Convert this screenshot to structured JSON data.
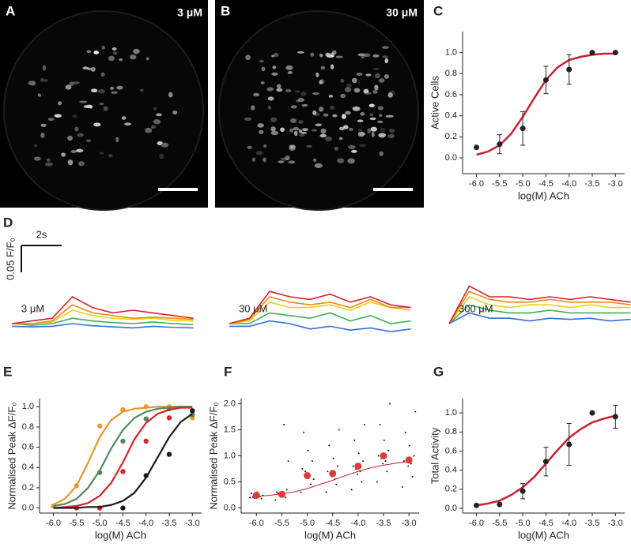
{
  "chart_data": [
    {
      "type": "image",
      "label": "A",
      "annotation": "3 μM"
    },
    {
      "type": "image",
      "label": "B",
      "annotation": "30 μM"
    },
    {
      "type": "scatter",
      "label": "C",
      "xlabel": "log(M) ACh",
      "ylabel": "Active Cells",
      "xlim": [
        -6.3,
        -2.8
      ],
      "ylim": [
        -0.15,
        1.2
      ],
      "xticks": [
        {
          "value": -6,
          "label": "-6.0"
        },
        -5.5,
        {
          "value": -5,
          "label": "-5.0"
        },
        -4.5,
        {
          "value": -4,
          "label": "-4.0"
        },
        -3.5,
        {
          "value": -3,
          "label": "-3.0"
        }
      ],
      "yticks": [
        {
          "value": 0,
          "label": "0.0"
        },
        0.2,
        0.4,
        0.6,
        0.8,
        {
          "value": 1,
          "label": "1.0"
        }
      ],
      "x": [
        -6,
        -5.5,
        -5,
        -4.5,
        -4,
        -3.5,
        -3
      ],
      "values": [
        0.1,
        0.13,
        0.28,
        0.74,
        0.84,
        1.0,
        1.0
      ],
      "errors": [
        null,
        0.09,
        0.16,
        0.13,
        0.14,
        null,
        null
      ],
      "color": "#222222",
      "fit": {
        "color": "#c8202e",
        "x": [
          -6,
          -5.75,
          -5.5,
          -5.25,
          -5,
          -4.75,
          -4.5,
          -4.25,
          -4,
          -3.75,
          -3.5,
          -3.25,
          -3
        ],
        "values": [
          0.03,
          0.06,
          0.12,
          0.23,
          0.39,
          0.57,
          0.74,
          0.86,
          0.93,
          0.96,
          0.98,
          0.99,
          0.99
        ]
      }
    },
    {
      "type": "traces",
      "label": "D",
      "scalebar": {
        "x_value": 2,
        "x_label": "2s",
        "y_value": 0.05,
        "y_label": "0.05 F/F₀"
      },
      "x": [
        0,
        1,
        2,
        3,
        4,
        5,
        6,
        7,
        8,
        9
      ],
      "panels": [
        {
          "label": "3 μM",
          "series": [
            {
              "color": "#3a6fd8",
              "values": [
                -0.005,
                -0.006,
                -0.005,
                0,
                -0.004,
                -0.006,
                -0.008,
                -0.005,
                -0.007,
                -0.008
              ]
            },
            {
              "color": "#3fae5a",
              "values": [
                0,
                -0.003,
                0,
                0.01,
                0.005,
                0.002,
                0,
                0.003,
                0,
                -0.002
              ]
            },
            {
              "color": "#e8d21e",
              "values": [
                0,
                0,
                0.003,
                0.025,
                0.015,
                0.01,
                0.008,
                0.01,
                0.006,
                0.005
              ]
            },
            {
              "color": "#f08a1c",
              "values": [
                0,
                0,
                0.005,
                0.035,
                0.02,
                0.015,
                0.01,
                0.012,
                0.01,
                0.008
              ]
            },
            {
              "color": "#d8232a",
              "values": [
                0,
                0.005,
                0.01,
                0.05,
                0.03,
                0.02,
                0.025,
                0.02,
                0.015,
                0.01
              ]
            }
          ]
        },
        {
          "label": "30 μM",
          "series": [
            {
              "color": "#3a6fd8",
              "values": [
                -0.005,
                -0.005,
                0.005,
                0,
                -0.01,
                -0.005,
                -0.012,
                -0.008,
                -0.015,
                -0.01
              ]
            },
            {
              "color": "#3fae5a",
              "values": [
                0,
                0,
                0.02,
                0.015,
                0.01,
                0.02,
                0.005,
                0.015,
                0,
                0.005
              ]
            },
            {
              "color": "#e8d21e",
              "values": [
                0,
                0.005,
                0.04,
                0.03,
                0.03,
                0.035,
                0.025,
                0.04,
                0.03,
                0.025
              ]
            },
            {
              "color": "#f08a1c",
              "values": [
                0,
                0.008,
                0.05,
                0.04,
                0.035,
                0.04,
                0.03,
                0.045,
                0.03,
                0.03
              ]
            },
            {
              "color": "#d8232a",
              "values": [
                0,
                0.01,
                0.06,
                0.05,
                0.045,
                0.055,
                0.04,
                0.05,
                0.035,
                0.03
              ]
            }
          ]
        },
        {
          "label": "300 μM",
          "series": [
            {
              "color": "#3a6fd8",
              "values": [
                0,
                0.02,
                0.01,
                0.01,
                0.005,
                0.01,
                0.008,
                0.01,
                0.005,
                0.008
              ]
            },
            {
              "color": "#3fae5a",
              "values": [
                0,
                0.035,
                0.025,
                0.02,
                0.02,
                0.025,
                0.02,
                0.02,
                0.02,
                0.02
              ]
            },
            {
              "color": "#e8d21e",
              "values": [
                0,
                0.05,
                0.035,
                0.03,
                0.035,
                0.035,
                0.03,
                0.035,
                0.03,
                0.03
              ]
            },
            {
              "color": "#f08a1c",
              "values": [
                0,
                0.06,
                0.045,
                0.04,
                0.04,
                0.045,
                0.04,
                0.04,
                0.04,
                0.035
              ]
            },
            {
              "color": "#d8232a",
              "values": [
                0,
                0.07,
                0.05,
                0.05,
                0.045,
                0.05,
                0.045,
                0.05,
                0.045,
                0.04
              ]
            }
          ]
        }
      ]
    },
    {
      "type": "multi",
      "label": "E",
      "xlabel": "log(M) ACh",
      "ylabel": "Normalised Peak ΔF/F₀",
      "xlim": [
        -6.3,
        -2.8
      ],
      "ylim": [
        -0.05,
        1.08
      ],
      "xticks": [
        {
          "value": -6,
          "label": "-6.0"
        },
        -5.5,
        {
          "value": -5,
          "label": "-5.0"
        },
        -4.5,
        {
          "value": -4,
          "label": "-4.0"
        },
        -3.5,
        {
          "value": -3,
          "label": "-3.0"
        }
      ],
      "yticks": [
        {
          "value": 0,
          "label": "0.0"
        },
        0.2,
        0.4,
        0.6,
        0.8,
        {
          "value": 1,
          "label": "1.0"
        }
      ],
      "x": [
        -6,
        -5.5,
        -5,
        -4.5,
        -4,
        -3.5,
        -3
      ],
      "fit_x": [
        -6,
        -5.75,
        -5.5,
        -5.25,
        -5,
        -4.75,
        -4.5,
        -4.25,
        -4,
        -3.75,
        -3.5,
        -3.25,
        -3
      ],
      "series": [
        {
          "color": "#e8982e",
          "values": [
            0.02,
            0.22,
            0.81,
            0.97,
            1.0,
            1.0,
            0.89
          ],
          "fit_values": [
            0.035,
            0.09,
            0.22,
            0.45,
            0.7,
            0.87,
            0.95,
            0.98,
            0.99,
            1.0,
            1.0,
            1.0,
            1.0
          ]
        },
        {
          "color": "#4f8a5e",
          "values": [
            null,
            null,
            0.35,
            0.66,
            0.88,
            0.98,
            0.92
          ],
          "fit_values": [
            0.02,
            0.04,
            0.09,
            0.2,
            0.37,
            0.59,
            0.77,
            0.89,
            0.95,
            0.98,
            0.99,
            1.0,
            1.0
          ]
        },
        {
          "color": "#d8232a",
          "values": [
            null,
            0.0,
            0.0,
            0.36,
            0.66,
            0.89,
            0.96
          ],
          "fit_values": [
            0.0,
            0.01,
            0.02,
            0.05,
            0.12,
            0.25,
            0.45,
            0.68,
            0.84,
            0.93,
            0.97,
            0.99,
            0.99
          ]
        },
        {
          "color": "#1a1a1a",
          "values": [
            null,
            null,
            null,
            0.0,
            0.32,
            0.53,
            0.96
          ],
          "fit_values": [
            0.0,
            0.0,
            0.0,
            0.01,
            0.01,
            0.03,
            0.07,
            0.15,
            0.3,
            0.5,
            0.7,
            0.85,
            0.93
          ]
        }
      ]
    },
    {
      "type": "strip",
      "label": "F",
      "xlabel": "log(M) ACh",
      "ylabel": "Normalised Peak ΔF/F₀",
      "xlim": [
        -6.3,
        -2.8
      ],
      "ylim": [
        -0.1,
        2.1
      ],
      "xticks": [
        {
          "value": -6,
          "label": "-6.0"
        },
        -5.5,
        {
          "value": -5,
          "label": "-5.0"
        },
        -4.5,
        {
          "value": -4,
          "label": "-4.0"
        },
        -3.5,
        {
          "value": -3,
          "label": "-3.0"
        }
      ],
      "yticks": [
        {
          "value": 0,
          "label": "0.0"
        },
        0.5,
        {
          "value": 1,
          "label": "1.0"
        },
        1.5,
        {
          "value": 2,
          "label": "2.0"
        }
      ],
      "x": [
        -6,
        -5.5,
        -5,
        -4.5,
        -4,
        -3.5,
        -3
      ],
      "values": [
        0.24,
        0.26,
        0.62,
        0.66,
        0.8,
        1.0,
        0.92
      ],
      "color": "#e03a3a",
      "samples": [
        [
          0.2,
          0.22,
          0.25,
          0.28,
          0.18,
          0.3,
          0.21,
          0.24,
          0.26,
          0.19
        ],
        [
          0.15,
          0.2,
          0.25,
          0.3,
          0.35,
          0.22,
          0.28,
          0.9,
          1.6,
          0.26
        ],
        [
          0.3,
          0.45,
          0.6,
          0.75,
          0.9,
          1.1,
          1.45,
          0.55,
          0.65,
          0.7
        ],
        [
          0.3,
          0.45,
          0.6,
          0.7,
          0.8,
          0.95,
          1.2,
          1.5,
          0.55,
          0.65
        ],
        [
          0.35,
          0.5,
          0.65,
          0.8,
          0.9,
          1.05,
          1.3,
          1.6,
          0.7,
          0.75
        ],
        [
          0.5,
          0.7,
          0.85,
          1.0,
          1.1,
          1.3,
          1.6,
          2.0,
          0.9,
          0.95
        ],
        [
          0.4,
          0.6,
          0.8,
          0.9,
          1.0,
          1.2,
          1.45,
          1.85,
          0.85,
          0.95
        ]
      ],
      "samples_color": "#111111",
      "fit": {
        "color": "#c8202e",
        "x": [
          -6,
          -5.75,
          -5.5,
          -5.25,
          -5,
          -4.75,
          -4.5,
          -4.25,
          -4,
          -3.75,
          -3.5,
          -3.25,
          -3
        ],
        "values": [
          0.22,
          0.24,
          0.27,
          0.31,
          0.37,
          0.45,
          0.53,
          0.62,
          0.7,
          0.77,
          0.82,
          0.86,
          0.89
        ]
      }
    },
    {
      "type": "scatter",
      "label": "G",
      "xlabel": "log(M) ACh",
      "ylabel": "Total Activity",
      "xlim": [
        -6.3,
        -2.8
      ],
      "ylim": [
        -0.05,
        1.15
      ],
      "xticks": [
        {
          "value": -6,
          "label": "-6.0"
        },
        -5.5,
        {
          "value": -5,
          "label": "-5.0"
        },
        -4.5,
        {
          "value": -4,
          "label": "-4.0"
        },
        -3.5,
        {
          "value": -3,
          "label": "-3.0"
        }
      ],
      "yticks": [
        {
          "value": 0,
          "label": "0.0"
        },
        0.2,
        0.4,
        0.6,
        0.8,
        {
          "value": 1,
          "label": "1.0"
        }
      ],
      "x": [
        -6,
        -5.5,
        -5,
        -4.5,
        -4,
        -3.5,
        -3
      ],
      "values": [
        0.03,
        0.04,
        0.18,
        0.49,
        0.67,
        1.0,
        0.96
      ],
      "errors": [
        null,
        null,
        0.08,
        0.15,
        0.22,
        null,
        0.12
      ],
      "color": "#222222",
      "fit": {
        "color": "#c8202e",
        "x": [
          -6,
          -5.75,
          -5.5,
          -5.25,
          -5,
          -4.75,
          -4.5,
          -4.25,
          -4,
          -3.75,
          -3.5,
          -3.25,
          -3
        ],
        "values": [
          0.03,
          0.05,
          0.08,
          0.14,
          0.22,
          0.33,
          0.47,
          0.61,
          0.74,
          0.83,
          0.9,
          0.94,
          0.97
        ]
      }
    }
  ]
}
